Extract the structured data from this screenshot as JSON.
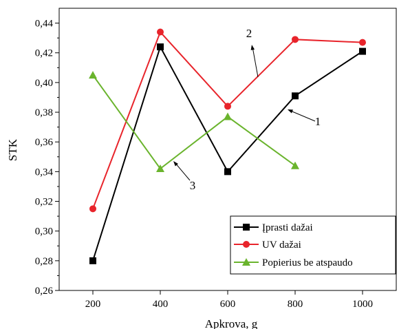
{
  "chart_data": {
    "type": "line",
    "xlabel": "Apkrova, g",
    "ylabel": "STK",
    "xlim": [
      100,
      1100
    ],
    "ylim": [
      0.26,
      0.45
    ],
    "x": [
      200,
      400,
      600,
      800,
      1000
    ],
    "x_ticks": [
      "200",
      "400",
      "600",
      "800",
      "1000"
    ],
    "y_ticks": [
      "0,26",
      "0,28",
      "0,30",
      "0,32",
      "0,34",
      "0,36",
      "0,38",
      "0,40",
      "0,42",
      "0,44"
    ],
    "grid": false,
    "legend_position": "bottom-right",
    "series": [
      {
        "name": "Įprasti dažai",
        "color": "#000000",
        "marker": "square",
        "x": [
          200,
          400,
          600,
          800,
          1000
        ],
        "values": [
          0.28,
          0.424,
          0.34,
          0.391,
          0.421
        ]
      },
      {
        "name": "UV dažai",
        "color": "#e8242b",
        "marker": "circle",
        "x": [
          200,
          400,
          600,
          800,
          1000
        ],
        "values": [
          0.315,
          0.434,
          0.384,
          0.429,
          0.427
        ]
      },
      {
        "name": "Popierius be atspaudo",
        "color": "#6ab42d",
        "marker": "triangle",
        "x": [
          200,
          400,
          600,
          800
        ],
        "values": [
          0.405,
          0.342,
          0.377,
          0.344
        ]
      }
    ],
    "annotations": [
      {
        "label": "1",
        "series": 0
      },
      {
        "label": "2",
        "series": 1
      },
      {
        "label": "3",
        "series": 2
      }
    ]
  }
}
